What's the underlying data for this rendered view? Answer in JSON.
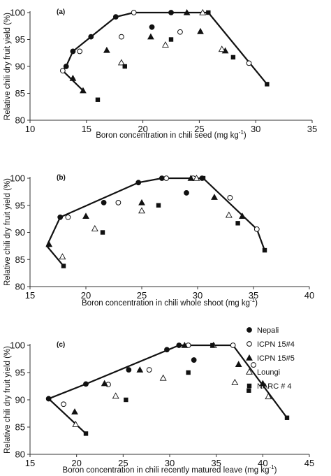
{
  "chart_data": [
    {
      "type": "scatter",
      "panel_label": "(a)",
      "xlabel": "Boron concentration in chili seed (mg kg",
      "xlabel_sup": "-1",
      "xlabel_end": ")",
      "ylabel": "Relative chili dry fruit yield (%)",
      "xlim": [
        10,
        35
      ],
      "ylim": [
        80,
        100
      ],
      "xticks": [
        "10",
        "15",
        "20",
        "25",
        "30",
        "35"
      ],
      "yticks": [
        "80",
        "85",
        "90",
        "95",
        "100"
      ],
      "series": [
        {
          "name": "Nepali",
          "marker": "filled-circle",
          "points": [
            [
              13.2,
              90.0
            ],
            [
              13.8,
              92.8
            ],
            [
              15.4,
              95.5
            ],
            [
              17.6,
              99.2
            ],
            [
              20.8,
              97.3
            ],
            [
              22.5,
              100.0
            ]
          ]
        },
        {
          "name": "ICPN 15#4",
          "marker": "open-circle",
          "points": [
            [
              12.9,
              89.2
            ],
            [
              14.4,
              92.8
            ],
            [
              18.1,
              95.5
            ],
            [
              19.2,
              100.0
            ],
            [
              23.3,
              96.4
            ],
            [
              29.4,
              90.6
            ]
          ]
        },
        {
          "name": "ICPN 15#5",
          "marker": "filled-triangle",
          "points": [
            [
              13.8,
              87.8
            ],
            [
              14.7,
              85.5
            ],
            [
              16.8,
              93.0
            ],
            [
              20.7,
              95.5
            ],
            [
              23.9,
              100.0
            ],
            [
              25.1,
              96.5
            ],
            [
              27.3,
              92.9
            ]
          ]
        },
        {
          "name": "Loungi",
          "marker": "open-triangle",
          "points": [
            [
              18.1,
              90.7
            ],
            [
              22.0,
              94.0
            ],
            [
              25.3,
              100.0
            ],
            [
              27.0,
              93.2
            ]
          ]
        },
        {
          "name": "NARC # 4",
          "marker": "filled-square",
          "points": [
            [
              16.0,
              83.8
            ],
            [
              18.4,
              90.0
            ],
            [
              22.5,
              95.0
            ],
            [
              25.8,
              100.0
            ],
            [
              28.0,
              91.7
            ],
            [
              31.0,
              86.7
            ]
          ]
        }
      ],
      "envelope": [
        [
          14.7,
          85.5
        ],
        [
          12.9,
          89.2
        ],
        [
          13.2,
          90.0
        ],
        [
          13.8,
          92.8
        ],
        [
          15.4,
          95.5
        ],
        [
          17.6,
          99.2
        ],
        [
          19.2,
          100.0
        ],
        [
          25.8,
          100.0
        ],
        [
          31.0,
          86.7
        ]
      ]
    },
    {
      "type": "scatter",
      "panel_label": "(b)",
      "xlabel": "Boron concentration in chili whole shoot (mg kg",
      "xlabel_sup": "-1",
      "xlabel_end": ")",
      "ylabel": "Relative chili dry fruit yield (%)",
      "xlim": [
        15,
        40
      ],
      "ylim": [
        80,
        100
      ],
      "xticks": [
        "15",
        "20",
        "25",
        "30",
        "35",
        "40"
      ],
      "yticks": [
        "80",
        "85",
        "90",
        "95",
        "100"
      ],
      "series": [
        {
          "name": "Nepali",
          "marker": "filled-circle",
          "points": [
            [
              17.7,
              92.8
            ],
            [
              21.6,
              95.5
            ],
            [
              24.7,
              99.2
            ],
            [
              26.8,
              100.0
            ],
            [
              29.0,
              97.3
            ],
            [
              30.4,
              100.0
            ]
          ]
        },
        {
          "name": "ICPN 15#4",
          "marker": "open-circle",
          "points": [
            [
              18.4,
              92.8
            ],
            [
              22.9,
              95.5
            ],
            [
              27.2,
              100.0
            ],
            [
              29.6,
              100.0
            ],
            [
              32.9,
              96.4
            ],
            [
              35.3,
              90.6
            ]
          ]
        },
        {
          "name": "ICPN 15#5",
          "marker": "filled-triangle",
          "points": [
            [
              16.7,
              87.8
            ],
            [
              20.0,
              93.0
            ],
            [
              25.0,
              95.5
            ],
            [
              29.4,
              100.0
            ],
            [
              31.5,
              96.5
            ],
            [
              34.0,
              93.0
            ]
          ]
        },
        {
          "name": "Loungi",
          "marker": "open-triangle",
          "points": [
            [
              17.9,
              85.5
            ],
            [
              20.8,
              90.7
            ],
            [
              25.0,
              94.0
            ],
            [
              29.9,
              100.0
            ],
            [
              32.8,
              93.2
            ]
          ]
        },
        {
          "name": "NARC # 4",
          "marker": "filled-square",
          "points": [
            [
              18.0,
              83.8
            ],
            [
              21.5,
              90.0
            ],
            [
              26.5,
              95.0
            ],
            [
              30.5,
              100.0
            ],
            [
              33.6,
              91.7
            ],
            [
              36.0,
              86.7
            ]
          ]
        }
      ],
      "envelope": [
        [
          18.0,
          83.8
        ],
        [
          16.5,
          87.5
        ],
        [
          17.7,
          92.8
        ],
        [
          24.7,
          99.2
        ],
        [
          26.8,
          100.0
        ],
        [
          30.5,
          100.0
        ],
        [
          35.3,
          90.6
        ],
        [
          36.0,
          86.7
        ]
      ]
    },
    {
      "type": "scatter",
      "panel_label": "(c)",
      "xlabel": "Boron concentration in  chili recently matured leave (mg kg",
      "xlabel_sup": "-1",
      "xlabel_end": ")",
      "ylabel": "Relative chili dry fruit yield (%)",
      "xlim": [
        15,
        45
      ],
      "ylim": [
        80,
        100
      ],
      "xticks": [
        "15",
        "20",
        "25",
        "30",
        "35",
        "40",
        "45"
      ],
      "yticks": [
        "80",
        "85",
        "90",
        "95",
        "100"
      ],
      "series": [
        {
          "name": "Nepali",
          "marker": "filled-circle",
          "points": [
            [
              17.0,
              90.2
            ],
            [
              21.0,
              92.9
            ],
            [
              25.6,
              95.5
            ],
            [
              29.7,
              99.2
            ],
            [
              31.0,
              100.0
            ],
            [
              32.6,
              97.3
            ]
          ]
        },
        {
          "name": "ICPN 15#4",
          "marker": "open-circle",
          "points": [
            [
              18.6,
              89.2
            ],
            [
              23.4,
              92.8
            ],
            [
              27.8,
              95.5
            ],
            [
              32.0,
              100.0
            ],
            [
              36.8,
              100.0
            ],
            [
              39.0,
              96.4
            ]
          ]
        },
        {
          "name": "ICPN 15#5",
          "marker": "filled-triangle",
          "points": [
            [
              19.8,
              87.8
            ],
            [
              23.0,
              93.0
            ],
            [
              26.8,
              95.5
            ],
            [
              31.6,
              100.0
            ],
            [
              37.4,
              96.5
            ],
            [
              40.0,
              93.0
            ]
          ]
        },
        {
          "name": "Loungi",
          "marker": "open-triangle",
          "points": [
            [
              19.9,
              85.5
            ],
            [
              24.2,
              90.7
            ],
            [
              29.3,
              94.0
            ],
            [
              34.7,
              100.0
            ],
            [
              37.0,
              93.2
            ],
            [
              40.6,
              90.6
            ]
          ]
        },
        {
          "name": "NARC # 4",
          "marker": "filled-square",
          "points": [
            [
              21.0,
              83.8
            ],
            [
              25.3,
              90.0
            ],
            [
              32.0,
              95.0
            ],
            [
              34.6,
              100.0
            ],
            [
              38.5,
              91.7
            ],
            [
              42.6,
              86.7
            ]
          ]
        }
      ],
      "envelope": [
        [
          21.0,
          83.8
        ],
        [
          17.0,
          90.2
        ],
        [
          21.0,
          92.9
        ],
        [
          31.0,
          100.0
        ],
        [
          36.8,
          100.0
        ],
        [
          42.6,
          86.7
        ]
      ]
    }
  ],
  "legend": [
    {
      "label": "Nepali",
      "marker": "filled-circle"
    },
    {
      "label": "ICPN 15#4",
      "marker": "open-circle"
    },
    {
      "label": "ICPN 15#5",
      "marker": "filled-triangle"
    },
    {
      "label": "Loungi",
      "marker": "open-triangle"
    },
    {
      "label": "NARC # 4",
      "marker": "filled-square"
    }
  ]
}
